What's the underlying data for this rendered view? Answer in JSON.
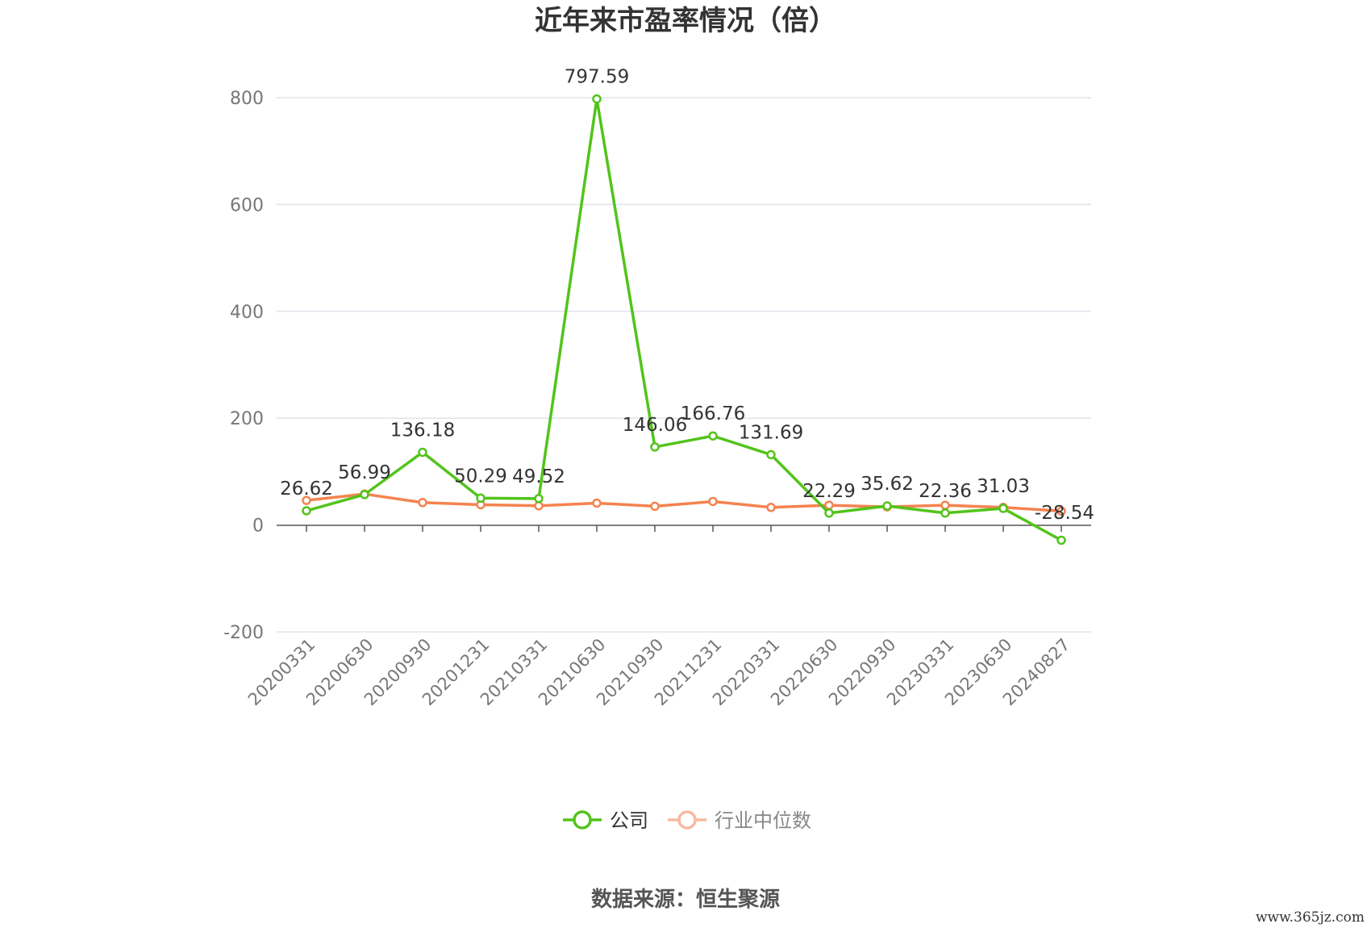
{
  "title": "近年来市盈率情况（倍）",
  "source": "数据来源：恒生聚源",
  "watermark": "www.365jz.com",
  "colors": {
    "company": "#52c41a",
    "industry": "#f4834f",
    "industry_legend": "#f9b8a0",
    "grid": "#e0e3ec",
    "axis": "#555555"
  },
  "chart_data": {
    "type": "line",
    "title": "近年来市盈率情况（倍）",
    "categories": [
      "20200331",
      "20200630",
      "20200930",
      "20201231",
      "20210331",
      "20210630",
      "20210930",
      "20211231",
      "20220331",
      "20220630",
      "20220930",
      "20230331",
      "20230630",
      "20240827"
    ],
    "ylim": [
      -200,
      800
    ],
    "yticks": [
      -200,
      0,
      200,
      400,
      600,
      800
    ],
    "grid": true,
    "legend_position": "bottom",
    "series": [
      {
        "name": "公司",
        "values": [
          26.62,
          56.99,
          136.18,
          50.29,
          49.52,
          797.59,
          146.06,
          166.76,
          131.69,
          22.29,
          35.62,
          22.36,
          31.03,
          -28.54
        ],
        "labels": [
          "26.62",
          "56.99",
          "136.18",
          "50.29",
          "49.52",
          "797.59",
          "146.06",
          "166.76",
          "131.69",
          "22.29",
          "35.62",
          "22.36",
          "31.03",
          "-28.54"
        ]
      },
      {
        "name": "行业中位数",
        "values": [
          46,
          58,
          42,
          38,
          36,
          41,
          35,
          44,
          33,
          37,
          34,
          37,
          33,
          26
        ]
      }
    ]
  }
}
